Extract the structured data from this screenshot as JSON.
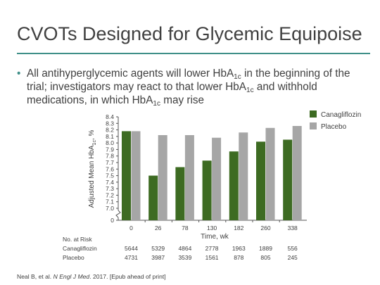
{
  "slide": {
    "title": "CVOTs Designed for Glycemic Equipoise",
    "bullet": {
      "p1": "All antihyperglycemic agents will lower HbA",
      "s1": "1c",
      "p2": " in the beginning of the trial; investigators may react to that lower HbA",
      "s2": "1c",
      "p3": " and withhold medications, in which HbA",
      "s3": "1c",
      "p4": " may rise"
    },
    "footer": {
      "authors": "Neal B, et al. ",
      "journal": "N Engl J Med",
      "rest": ". 2017. [Epub ahead of print]"
    }
  },
  "colors": {
    "accent": "#3f8f88",
    "canagliflozin": "#3d6b22",
    "placebo": "#a6a6a6"
  },
  "chart_data": {
    "type": "bar",
    "ylabel_main": "Adjusted Mean HbA",
    "ylabel_sub": "1c",
    "ylabel_end": ", %",
    "xlabel": "Time, wk",
    "categories": [
      "0",
      "26",
      "78",
      "130",
      "182",
      "260",
      "338"
    ],
    "ylim": [
      7.0,
      8.4
    ],
    "yticks": [
      "0",
      "7.0",
      "7.1",
      "7.2",
      "7.3",
      "7.4",
      "7.5",
      "7.6",
      "7.7",
      "7.8",
      "7.9",
      "8.0",
      "8.1",
      "8.2",
      "8.3",
      "8.4"
    ],
    "axis_break": true,
    "series": [
      {
        "name": "Canagliflozin",
        "values": [
          8.18,
          7.5,
          7.63,
          7.73,
          7.87,
          8.02,
          8.05
        ]
      },
      {
        "name": "Placebo",
        "values": [
          8.18,
          8.12,
          8.12,
          8.08,
          8.16,
          8.23,
          8.26
        ]
      }
    ],
    "legend_position": "top-right",
    "at_risk": {
      "label": "No. at Risk",
      "rows": [
        {
          "name": "Canagliflozin",
          "values": [
            "5644",
            "5329",
            "4864",
            "2778",
            "1963",
            "1889",
            "556"
          ]
        },
        {
          "name": "Placebo",
          "values": [
            "4731",
            "3987",
            "3539",
            "1561",
            "878",
            "805",
            "245"
          ]
        }
      ]
    }
  }
}
